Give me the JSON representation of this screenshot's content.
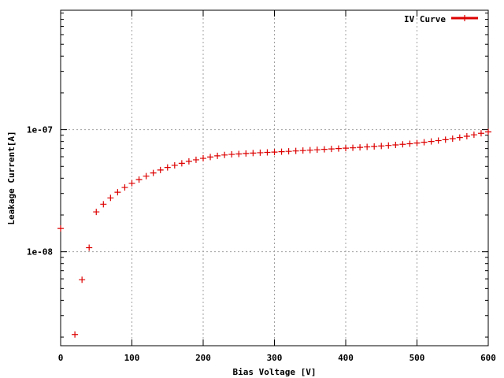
{
  "chart_data": {
    "type": "scatter",
    "title": "",
    "xlabel": "Bias Voltage [V]",
    "ylabel": "Leakage Current[A]",
    "xlim": [
      0,
      600
    ],
    "ylim": [
      1.7e-09,
      9.5e-07
    ],
    "yscale": "log",
    "grid": true,
    "legend_position": "top-right",
    "x_ticks": [
      {
        "value": 0,
        "label": "0"
      },
      {
        "value": 100,
        "label": "100"
      },
      {
        "value": 200,
        "label": "200"
      },
      {
        "value": 300,
        "label": "300"
      },
      {
        "value": 400,
        "label": "400"
      },
      {
        "value": 500,
        "label": "500"
      },
      {
        "value": 600,
        "label": "600"
      }
    ],
    "y_ticks": [
      {
        "value": 1e-08,
        "label": "1e-08"
      },
      {
        "value": 1e-07,
        "label": "1e-07"
      }
    ],
    "series": [
      {
        "name": "IV Curve",
        "color": "#dd0000",
        "marker": "plus",
        "x": [
          0,
          20,
          30,
          40,
          50,
          60,
          70,
          80,
          90,
          100,
          110,
          120,
          130,
          140,
          150,
          160,
          170,
          180,
          190,
          200,
          210,
          220,
          230,
          240,
          250,
          260,
          270,
          280,
          290,
          300,
          310,
          320,
          330,
          340,
          350,
          360,
          370,
          380,
          390,
          400,
          410,
          420,
          430,
          440,
          450,
          460,
          470,
          480,
          490,
          500,
          510,
          520,
          530,
          540,
          550,
          560,
          570,
          580,
          590,
          600
        ],
        "y": [
          1.55e-08,
          2.1e-09,
          5.9e-09,
          1.08e-08,
          2.12e-08,
          2.45e-08,
          2.76e-08,
          3.07e-08,
          3.36e-08,
          3.64e-08,
          3.9e-08,
          4.16e-08,
          4.42e-08,
          4.67e-08,
          4.9e-08,
          5.1e-08,
          5.3e-08,
          5.5e-08,
          5.66e-08,
          5.82e-08,
          5.97e-08,
          6.1e-08,
          6.2e-08,
          6.27e-08,
          6.32e-08,
          6.38e-08,
          6.43e-08,
          6.47e-08,
          6.51e-08,
          6.55e-08,
          6.6e-08,
          6.64e-08,
          6.69e-08,
          6.74e-08,
          6.79e-08,
          6.84e-08,
          6.9e-08,
          6.95e-08,
          7e-08,
          7.05e-08,
          7.1e-08,
          7.16e-08,
          7.22e-08,
          7.28e-08,
          7.35e-08,
          7.42e-08,
          7.5e-08,
          7.58e-08,
          7.67e-08,
          7.77e-08,
          7.88e-08,
          8e-08,
          8.13e-08,
          8.27e-08,
          8.43e-08,
          8.62e-08,
          8.83e-08,
          9.07e-08,
          9.33e-08,
          9.58e-08
        ]
      }
    ]
  }
}
